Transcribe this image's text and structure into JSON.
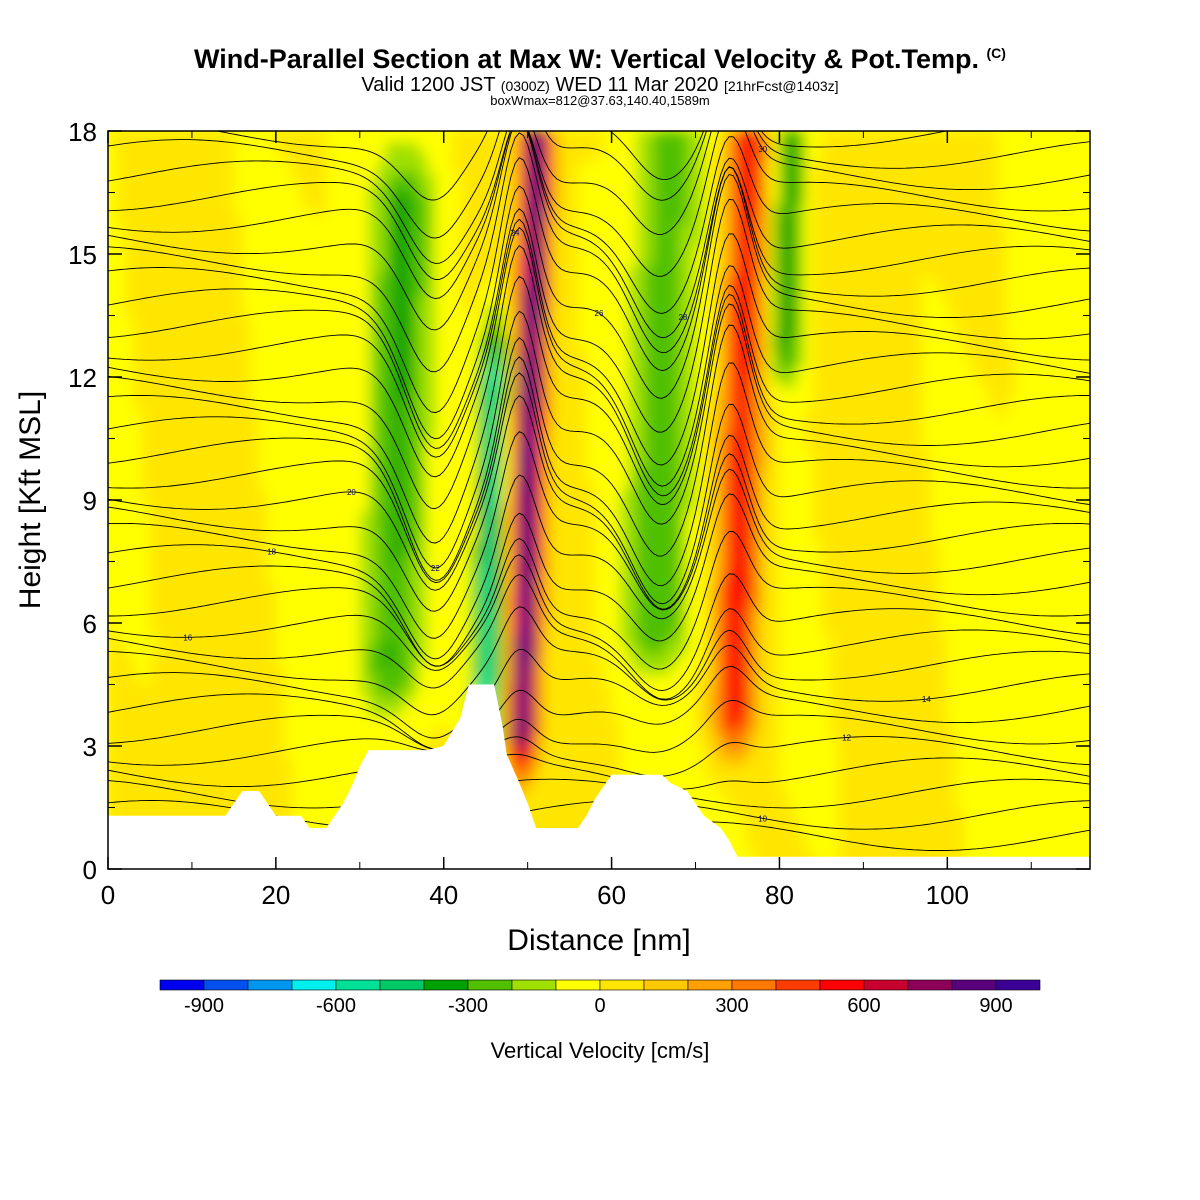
{
  "title": {
    "main": "Wind-Parallel Section at Max W: Vertical Velocity & Pot.Temp.",
    "copyright_mark": "(C)",
    "valid_prefix": "Valid 1200 JST",
    "valid_utc": "(0300Z)",
    "valid_date": "WED 11 Mar 2020",
    "forecast": "[21hrFcst@1403z]",
    "boxline": "boxWmax=812@37.63,140.40,1589m"
  },
  "colorbar": {
    "label": "Vertical Velocity [cm/s]",
    "tick_labels": [
      "-900",
      "-600",
      "-300",
      "0",
      "300",
      "600",
      "900"
    ],
    "levels": [
      -1000,
      -900,
      -800,
      -700,
      -600,
      -500,
      -400,
      -300,
      -200,
      -100,
      0,
      100,
      200,
      300,
      400,
      500,
      600,
      700,
      800,
      900,
      1000
    ],
    "colors": [
      "#0000f0",
      "#0050f0",
      "#0096f0",
      "#00f0f0",
      "#00e096",
      "#00c864",
      "#00a000",
      "#50c000",
      "#a0e000",
      "#ffff00",
      "#ffe600",
      "#ffc800",
      "#ffa000",
      "#ff7800",
      "#ff3c00",
      "#ff0000",
      "#c8002d",
      "#8c005a",
      "#5a007d",
      "#3c0096"
    ]
  },
  "chart_data": {
    "type": "heatmap",
    "xlabel": "Distance [nm]",
    "ylabel": "Height [Kft MSL]",
    "xlim": [
      0,
      117
    ],
    "ylim": [
      0,
      18
    ],
    "x_ticks": [
      "0",
      "20",
      "40",
      "60",
      "80",
      "100"
    ],
    "y_ticks": [
      "0",
      "3",
      "6",
      "9",
      "12",
      "15",
      "18"
    ],
    "grid": false,
    "fill_variable": "vertical velocity [cm/s]",
    "contour_variable": "potential temperature",
    "vertical_velocity_features": [
      {
        "x_range": [
          44,
          47
        ],
        "z_range": [
          3.5,
          12
        ],
        "peak": -600
      },
      {
        "x_range": [
          48.5,
          52
        ],
        "z_range": [
          3.5,
          18
        ],
        "peak": 900
      },
      {
        "x_range": [
          73,
          78
        ],
        "z_range": [
          4,
          18
        ],
        "peak": 600
      },
      {
        "x_range": [
          31,
          38
        ],
        "z_range": [
          5,
          16
        ],
        "peak": -300
      },
      {
        "x_range": [
          62,
          70
        ],
        "z_range": [
          6,
          18
        ],
        "peak": -250
      },
      {
        "x_range": [
          79,
          83
        ],
        "z_range": [
          13,
          18
        ],
        "peak": -350
      }
    ],
    "theta_contour_labels": [
      "10",
      "12",
      "14",
      "16",
      "18",
      "20",
      "22",
      "24",
      "26",
      "28",
      "30"
    ],
    "terrain_kft": [
      [
        0,
        1.3
      ],
      [
        14,
        1.3
      ],
      [
        15,
        1.6
      ],
      [
        16,
        1.9
      ],
      [
        18,
        1.9
      ],
      [
        19,
        1.6
      ],
      [
        20,
        1.3
      ],
      [
        23,
        1.3
      ],
      [
        24,
        1.0
      ],
      [
        26,
        1.0
      ],
      [
        27,
        1.3
      ],
      [
        28,
        1.6
      ],
      [
        29,
        2.0
      ],
      [
        30,
        2.5
      ],
      [
        31,
        2.9
      ],
      [
        38,
        2.9
      ],
      [
        40,
        3.0
      ],
      [
        42,
        3.7
      ],
      [
        43,
        4.5
      ],
      [
        46,
        4.5
      ],
      [
        47,
        3.5
      ],
      [
        47.5,
        2.8
      ],
      [
        49,
        2.1
      ],
      [
        50,
        1.6
      ],
      [
        51,
        1.0
      ],
      [
        56,
        1.0
      ],
      [
        57,
        1.3
      ],
      [
        58,
        1.7
      ],
      [
        59,
        2.0
      ],
      [
        60,
        2.3
      ],
      [
        66,
        2.3
      ],
      [
        67,
        2.1
      ],
      [
        69,
        1.9
      ],
      [
        70,
        1.6
      ],
      [
        71,
        1.3
      ],
      [
        73,
        1.0
      ],
      [
        74,
        0.7
      ],
      [
        75,
        0.3
      ],
      [
        117,
        0.3
      ]
    ]
  }
}
